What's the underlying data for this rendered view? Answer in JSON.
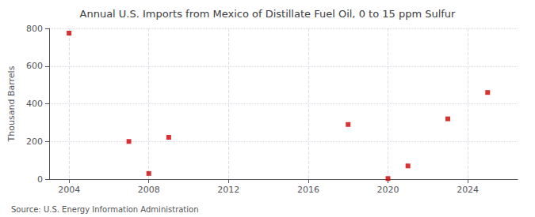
{
  "chart_data": {
    "type": "scatter",
    "title": "Annual U.S. Imports from Mexico of Distillate Fuel Oil, 0 to 15 ppm Sulfur",
    "ylabel": "Thousand Barrels",
    "source": "Source: U.S. Energy Information Administration",
    "x": [
      2004,
      2007,
      2008,
      2009,
      2018,
      2020,
      2021,
      2023,
      2025
    ],
    "values": [
      775,
      200,
      30,
      222,
      290,
      3,
      70,
      320,
      460
    ],
    "color": "#cc0000",
    "marker": "square",
    "xlim": [
      2003.0,
      2026.5
    ],
    "ylim": [
      0,
      800
    ],
    "xticks": [
      2004,
      2008,
      2012,
      2016,
      2020,
      2024
    ],
    "yticks": [
      0,
      200,
      400,
      600,
      800
    ],
    "grid": true
  }
}
